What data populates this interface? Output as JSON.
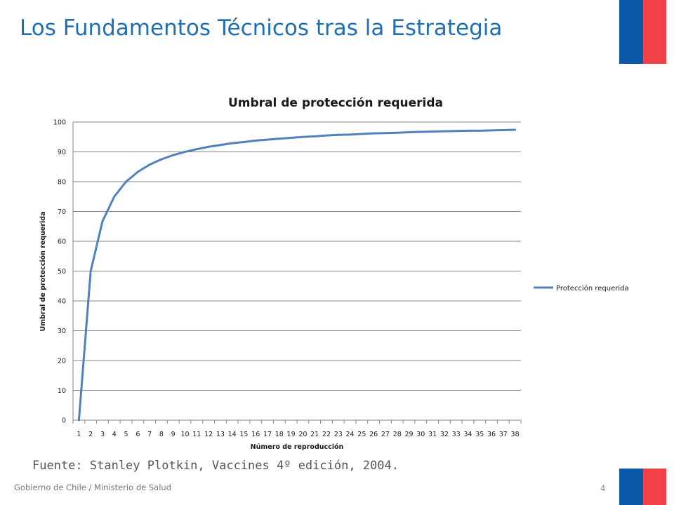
{
  "slide": {
    "title": "Los Fundamentos Técnicos tras la Estrategia",
    "source": "Fuente: Stanley Plotkin, Vaccines 4º edición, 2004.",
    "footer": "Gobierno de Chile / Ministerio de Salud",
    "page_number": "4"
  },
  "colors": {
    "title": "#1f6fb2",
    "series_line": "#4f81bd",
    "grid": "#868686",
    "flag_blue": "#0b58a8",
    "flag_red": "#f04146"
  },
  "chart_data": {
    "type": "line",
    "title": "Umbral de protección requerida",
    "xlabel": "Número de reproducción",
    "ylabel": "Umbral de protección requerida",
    "categories": [
      "1",
      "2",
      "3",
      "4",
      "5",
      "6",
      "7",
      "8",
      "9",
      "10",
      "11",
      "12",
      "13",
      "14",
      "15",
      "16",
      "17",
      "18",
      "19",
      "20",
      "21",
      "22",
      "23",
      "24",
      "25",
      "26",
      "27",
      "28",
      "29",
      "30",
      "31",
      "32",
      "33",
      "34",
      "35",
      "36",
      "37",
      "38"
    ],
    "ylim": [
      0,
      100
    ],
    "yticks": [
      0,
      10,
      20,
      30,
      40,
      50,
      60,
      70,
      80,
      90,
      100
    ],
    "grid": true,
    "legend_position": "right",
    "series": [
      {
        "name": "Protección requerida",
        "values": [
          0,
          50,
          66.7,
          75,
          80,
          83.3,
          85.7,
          87.5,
          88.9,
          90,
          90.9,
          91.7,
          92.3,
          92.9,
          93.3,
          93.8,
          94.1,
          94.4,
          94.7,
          95,
          95.2,
          95.5,
          95.7,
          95.8,
          96,
          96.2,
          96.3,
          96.4,
          96.6,
          96.7,
          96.8,
          96.9,
          97,
          97.1,
          97.1,
          97.2,
          97.3,
          97.4
        ]
      }
    ]
  }
}
